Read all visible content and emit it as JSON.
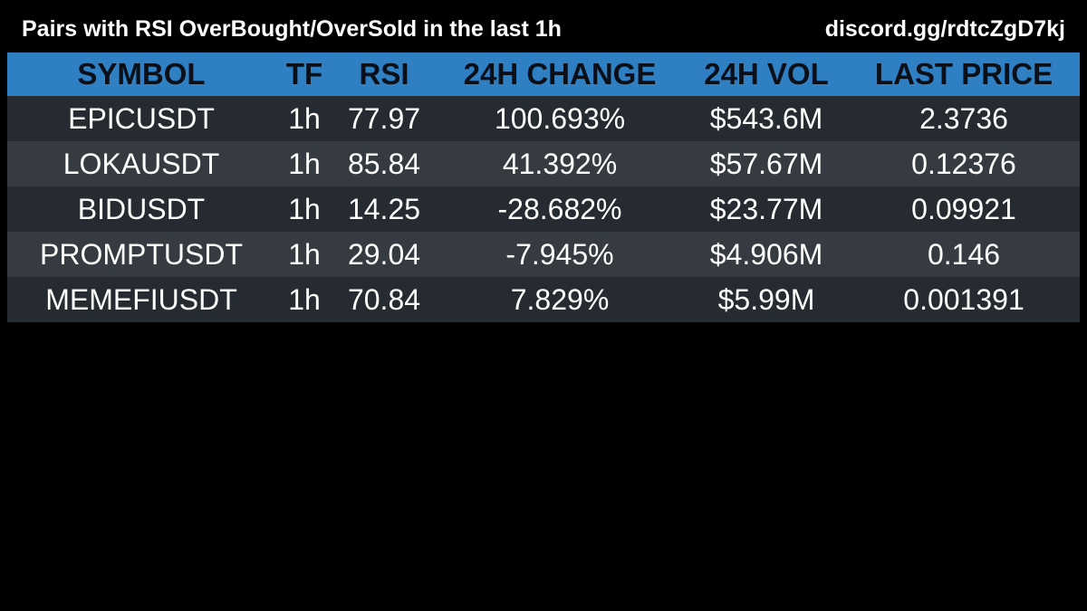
{
  "header": {
    "title": "Pairs with RSI OverBought/OverSold in the last 1h",
    "link": "discord.gg/rdtcZgD7kj"
  },
  "table": {
    "columns": [
      "SYMBOL",
      "TF",
      "RSI",
      "24H CHANGE",
      "24H VOL",
      "LAST PRICE"
    ],
    "rows": [
      [
        "EPICUSDT",
        "1h",
        "77.97",
        "100.693%",
        "$543.6M",
        "2.3736"
      ],
      [
        "LOKAUSDT",
        "1h",
        "85.84",
        "41.392%",
        "$57.67M",
        "0.12376"
      ],
      [
        "BIDUSDT",
        "1h",
        "14.25",
        "-28.682%",
        "$23.77M",
        "0.09921"
      ],
      [
        "PROMPTUSDT",
        "1h",
        "29.04",
        "-7.945%",
        "$4.906M",
        "0.146"
      ],
      [
        "MEMEFIUSDT",
        "1h",
        "70.84",
        "7.829%",
        "$5.99M",
        "0.001391"
      ]
    ]
  },
  "colors": {
    "header_bg": "#2f7fc3",
    "row_dark": "#262b31",
    "row_light": "#363b41",
    "background": "#000000"
  }
}
